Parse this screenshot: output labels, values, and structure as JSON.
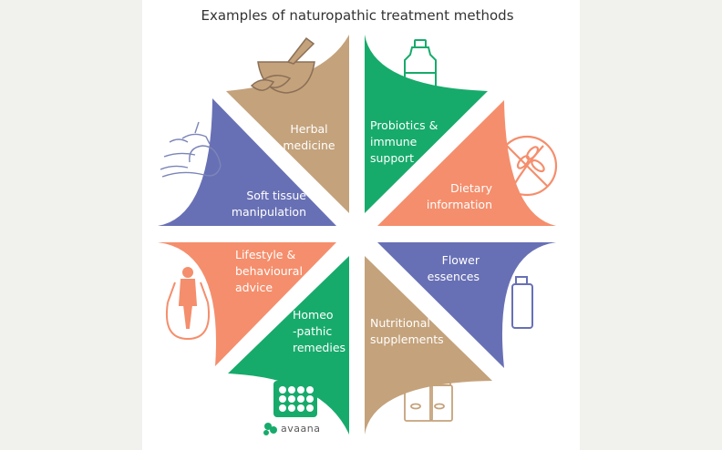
{
  "title": "Examples of naturopathic treatment methods",
  "colors": {
    "tan": "#c4a27b",
    "green": "#17ab6b",
    "salmon": "#f58e6c",
    "purple": "#6870b5",
    "icon_stroke": "#7b85b8"
  },
  "segments": [
    {
      "key": "herbal",
      "lines": [
        "Herbal",
        "medicine"
      ],
      "color": "#c4a27b",
      "icon": "mortar-pestle-icon"
    },
    {
      "key": "probiotics",
      "lines": [
        "Probiotics &",
        "immune",
        "support"
      ],
      "color": "#17ab6b",
      "icon": "bottle-icon"
    },
    {
      "key": "dietary",
      "lines": [
        "Dietary",
        "information"
      ],
      "color": "#f58e6c",
      "icon": "no-wheat-icon"
    },
    {
      "key": "flower",
      "lines": [
        "Flower",
        "essences"
      ],
      "color": "#6870b5",
      "icon": "dropper-bottle-icon"
    },
    {
      "key": "nutritional",
      "lines": [
        "Nutritional",
        "supplements"
      ],
      "color": "#c4a27b",
      "icon": "supplement-jars-icon"
    },
    {
      "key": "homeo",
      "lines": [
        "Homeo",
        "-pathic",
        "remedies"
      ],
      "color": "#17ab6b",
      "icon": "pill-jar-icon"
    },
    {
      "key": "lifestyle",
      "lines": [
        "Lifestyle &",
        "behavioural",
        "advice"
      ],
      "color": "#f58e6c",
      "icon": "jump-rope-icon"
    },
    {
      "key": "softtissue",
      "lines": [
        "Soft tissue",
        "manipulation"
      ],
      "color": "#6870b5",
      "icon": "massage-icon"
    }
  ],
  "brand": "avaana"
}
